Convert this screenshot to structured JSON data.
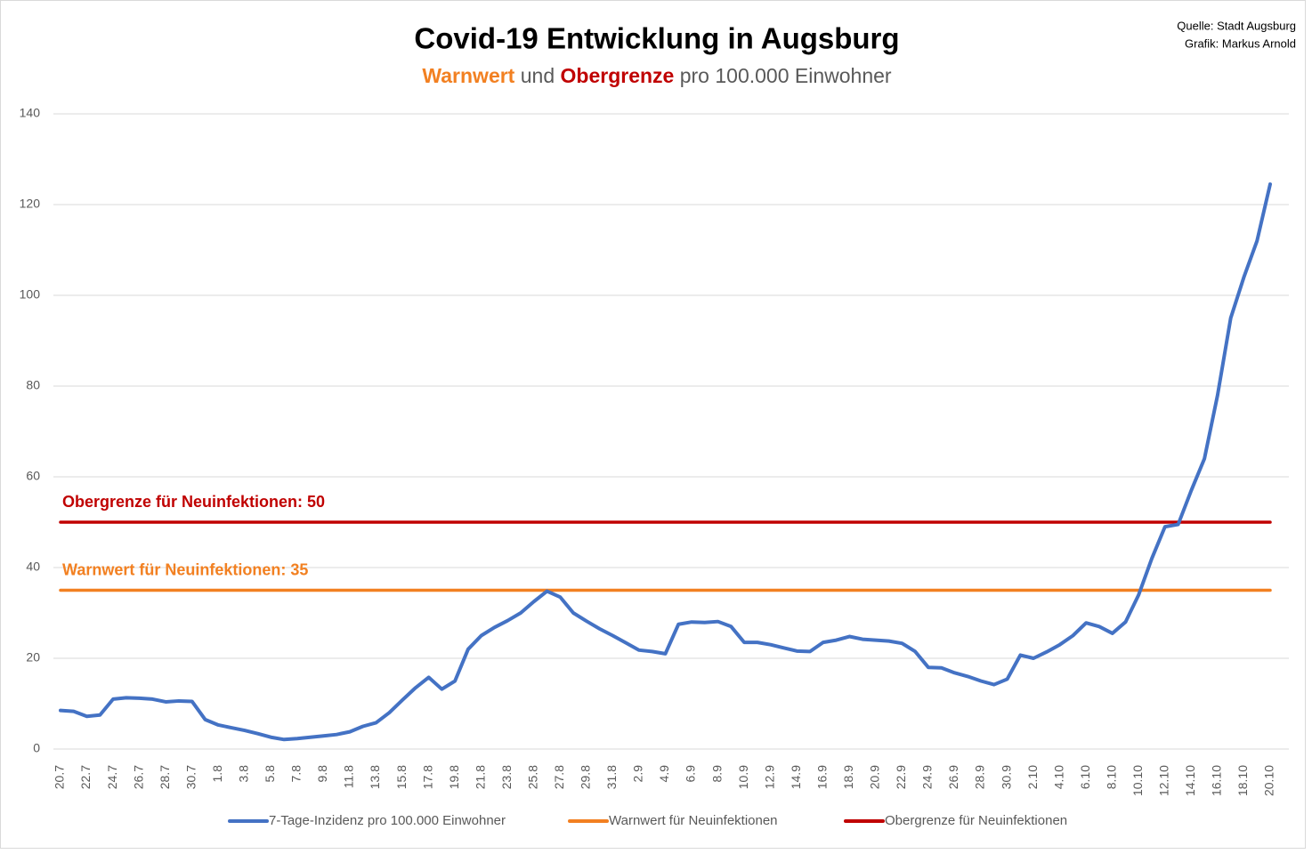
{
  "chart_data": {
    "type": "line",
    "title": "Covid-19 Entwicklung in Augsburg",
    "subtitle": [
      {
        "text": "Warnwert",
        "color": "#f28021",
        "bold": true
      },
      {
        "text": "und",
        "color": "#595959",
        "bold": false
      },
      {
        "text": "Obergrenze",
        "color": "#c00000",
        "bold": true
      },
      {
        "text": "pro 100.000 Einwohner",
        "color": "#595959",
        "bold": false
      }
    ],
    "source": [
      "Quelle: Stadt Augsburg",
      "Grafik: Markus Arnold"
    ],
    "annotations": [
      {
        "text": "Obergrenze für Neuinfektionen: 50",
        "color": "#c00000",
        "series": 2
      },
      {
        "text": "Warnwert für Neuinfektionen: 35",
        "color": "#f28021",
        "series": 1
      }
    ],
    "categories": [
      "20.7",
      null,
      "22.7",
      null,
      "24.7",
      null,
      "26.7",
      null,
      "28.7",
      null,
      "30.7",
      null,
      "1.8",
      null,
      "3.8",
      null,
      "5.8",
      null,
      "7.8",
      null,
      "9.8",
      null,
      "11.8",
      null,
      "13.8",
      null,
      "15.8",
      null,
      "17.8",
      null,
      "19.8",
      null,
      "21.8",
      null,
      "23.8",
      null,
      "25.8",
      null,
      "27.8",
      null,
      "29.8",
      null,
      "31.8",
      null,
      "2.9",
      null,
      "4.9",
      null,
      "6.9",
      null,
      "8.9",
      null,
      "10.9",
      null,
      "12.9",
      null,
      "14.9",
      null,
      "16.9",
      null,
      "18.9",
      null,
      "20.9",
      null,
      "22.9",
      null,
      "24.9",
      null,
      "26.9",
      null,
      "28.9",
      null,
      "30.9",
      null,
      "2.10",
      null,
      "4.10",
      null,
      "6.10",
      null,
      "8.10",
      null,
      "10.10",
      null,
      "12.10",
      null,
      "14.10",
      null,
      "16.10",
      null,
      "18.10",
      null,
      "20.10"
    ],
    "series": [
      {
        "name": "7-Tage-Inzidenz pro 100.000 Einwohner",
        "color": "#4472c4",
        "values": [
          8.5,
          8.3,
          7.2,
          7.5,
          11,
          11.3,
          11.2,
          11,
          10.4,
          10.6,
          10.5,
          6.5,
          5.3,
          4.7,
          4.1,
          3.4,
          2.6,
          2.1,
          2.3,
          2.6,
          2.9,
          3.2,
          3.8,
          5,
          5.8,
          8,
          10.8,
          13.5,
          15.8,
          13.2,
          15,
          22,
          25,
          26.8,
          28.3,
          30,
          32.5,
          34.8,
          33.5,
          30,
          28.2,
          26.5,
          25,
          23.4,
          21.8,
          21.5,
          21,
          27.5,
          28,
          27.9,
          28.1,
          27,
          23.5,
          23.5,
          23,
          22.3,
          21.6,
          21.5,
          23.5,
          24,
          24.8,
          24.2,
          24,
          23.8,
          23.3,
          21.5,
          18,
          17.9,
          16.8,
          16,
          15,
          14.2,
          15.4,
          20.7,
          20,
          21.4,
          23,
          25,
          27.8,
          27,
          25.5,
          28,
          34,
          42,
          49,
          49.5,
          57,
          64,
          78,
          95,
          104,
          112,
          124.5
        ]
      },
      {
        "name": "Warnwert für Neuinfektionen",
        "color": "#f28021",
        "values": [
          35,
          35,
          35,
          35,
          35,
          35,
          35,
          35,
          35,
          35,
          35,
          35,
          35,
          35,
          35,
          35,
          35,
          35,
          35,
          35,
          35,
          35,
          35,
          35,
          35,
          35,
          35,
          35,
          35,
          35,
          35,
          35,
          35,
          35,
          35,
          35,
          35,
          35,
          35,
          35,
          35,
          35,
          35,
          35,
          35,
          35,
          35,
          35,
          35,
          35,
          35,
          35,
          35,
          35,
          35,
          35,
          35,
          35,
          35,
          35,
          35,
          35,
          35,
          35,
          35,
          35,
          35,
          35,
          35,
          35,
          35,
          35,
          35,
          35,
          35,
          35,
          35,
          35,
          35,
          35,
          35,
          35,
          35,
          35,
          35,
          35,
          35,
          35,
          35,
          35,
          35,
          35,
          35
        ]
      },
      {
        "name": "Obergrenze für Neuinfektionen",
        "color": "#c00000",
        "values": [
          50,
          50,
          50,
          50,
          50,
          50,
          50,
          50,
          50,
          50,
          50,
          50,
          50,
          50,
          50,
          50,
          50,
          50,
          50,
          50,
          50,
          50,
          50,
          50,
          50,
          50,
          50,
          50,
          50,
          50,
          50,
          50,
          50,
          50,
          50,
          50,
          50,
          50,
          50,
          50,
          50,
          50,
          50,
          50,
          50,
          50,
          50,
          50,
          50,
          50,
          50,
          50,
          50,
          50,
          50,
          50,
          50,
          50,
          50,
          50,
          50,
          50,
          50,
          50,
          50,
          50,
          50,
          50,
          50,
          50,
          50,
          50,
          50,
          50,
          50,
          50,
          50,
          50,
          50,
          50,
          50,
          50,
          50,
          50,
          50,
          50,
          50,
          50,
          50,
          50,
          50,
          50,
          50
        ]
      }
    ],
    "ylim": [
      0,
      140
    ],
    "yticks": [
      0,
      20,
      40,
      60,
      80,
      100,
      120,
      140
    ],
    "grid": true,
    "legend": "bottom"
  }
}
